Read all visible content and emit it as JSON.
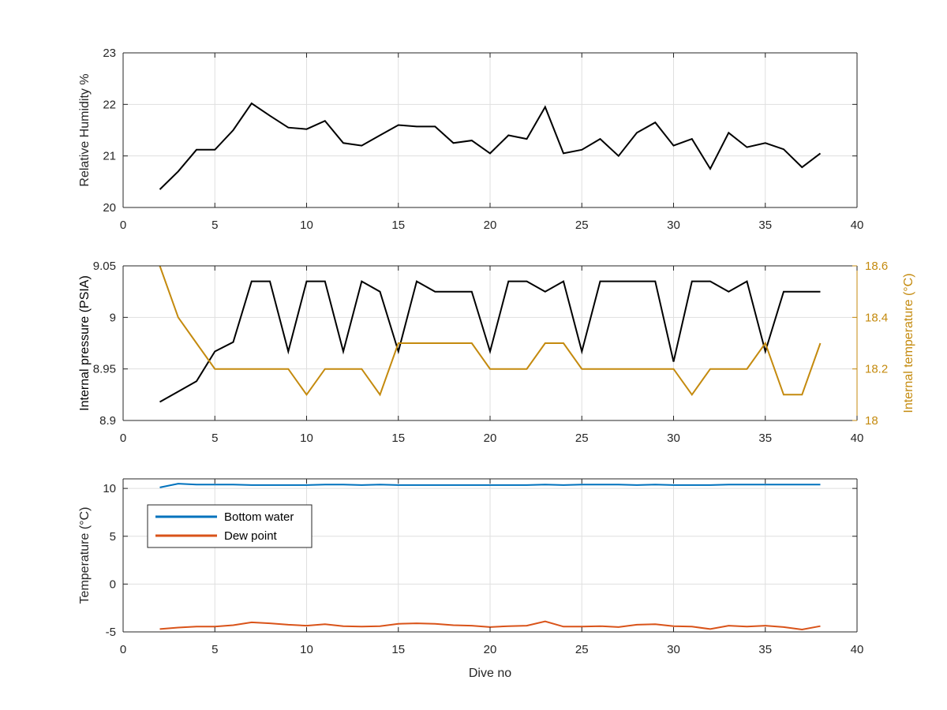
{
  "chart_data": [
    {
      "type": "line",
      "xlabel": "",
      "ylabel": "Relative Humidity %",
      "xlim": [
        0,
        40
      ],
      "ylim": [
        20,
        23
      ],
      "xticks": [
        0,
        5,
        10,
        15,
        20,
        25,
        30,
        35,
        40
      ],
      "yticks": [
        20,
        21,
        22,
        23
      ],
      "grid": true,
      "series": [
        {
          "color": "#000000",
          "x": [
            2,
            3,
            4,
            5,
            6,
            7,
            8,
            9,
            10,
            11,
            12,
            13,
            14,
            15,
            16,
            17,
            18,
            19,
            20,
            21,
            22,
            23,
            24,
            25,
            26,
            27,
            28,
            29,
            30,
            31,
            32,
            33,
            34,
            35,
            36,
            37,
            38
          ],
          "y": [
            20.35,
            20.7,
            21.12,
            21.12,
            21.5,
            22.02,
            21.78,
            21.55,
            21.52,
            21.68,
            21.25,
            21.2,
            21.4,
            21.6,
            21.57,
            21.57,
            21.25,
            21.3,
            21.05,
            21.4,
            21.33,
            21.95,
            21.05,
            21.12,
            21.33,
            21.0,
            21.45,
            21.65,
            21.2,
            21.33,
            20.75,
            21.45,
            21.17,
            21.25,
            21.13,
            20.78,
            21.05
          ]
        }
      ]
    },
    {
      "type": "line",
      "xlabel": "",
      "ylabel": "Internal pressure (PSIA)",
      "ylabel_right": "Internal temperature (°C)",
      "xlim": [
        0,
        40
      ],
      "ylim": [
        8.9,
        9.05
      ],
      "ylim_right": [
        18,
        18.6
      ],
      "xticks": [
        0,
        5,
        10,
        15,
        20,
        25,
        30,
        35,
        40
      ],
      "yticks": [
        "8.9",
        "8.95",
        "9",
        "9.05"
      ],
      "yticks_right": [
        "18",
        "18.2",
        "18.4",
        "18.6"
      ],
      "grid": true,
      "right_axis_color": "#c48a0e",
      "series": [
        {
          "color": "#000000",
          "axis": "left",
          "x": [
            2,
            3,
            4,
            5,
            6,
            7,
            8,
            9,
            10,
            11,
            12,
            13,
            14,
            15,
            16,
            17,
            18,
            19,
            20,
            21,
            22,
            23,
            24,
            25,
            26,
            27,
            28,
            29,
            30,
            31,
            32,
            33,
            34,
            35,
            36,
            37,
            38
          ],
          "y": [
            8.918,
            8.928,
            8.938,
            8.967,
            8.976,
            9.035,
            9.035,
            8.967,
            9.035,
            9.035,
            8.967,
            9.035,
            9.025,
            8.967,
            9.035,
            9.025,
            9.025,
            9.025,
            8.967,
            9.035,
            9.035,
            9.025,
            9.035,
            8.967,
            9.035,
            9.035,
            9.035,
            9.035,
            8.957,
            9.035,
            9.035,
            9.025,
            9.035,
            8.967,
            9.025,
            9.025,
            9.025
          ]
        },
        {
          "color": "#c48a0e",
          "axis": "right",
          "x": [
            2,
            3,
            4,
            5,
            6,
            7,
            8,
            9,
            10,
            11,
            12,
            13,
            14,
            15,
            16,
            17,
            18,
            19,
            20,
            21,
            22,
            23,
            24,
            25,
            26,
            27,
            28,
            29,
            30,
            31,
            32,
            33,
            34,
            35,
            36,
            37,
            38
          ],
          "y": [
            18.6,
            18.4,
            18.3,
            18.2,
            18.2,
            18.2,
            18.2,
            18.2,
            18.1,
            18.2,
            18.2,
            18.2,
            18.1,
            18.3,
            18.3,
            18.3,
            18.3,
            18.3,
            18.2,
            18.2,
            18.2,
            18.3,
            18.3,
            18.2,
            18.2,
            18.2,
            18.2,
            18.2,
            18.2,
            18.1,
            18.2,
            18.2,
            18.2,
            18.3,
            18.1,
            18.1,
            18.3
          ]
        }
      ]
    },
    {
      "type": "line",
      "xlabel": "Dive no",
      "ylabel": "Temperature (°C)",
      "xlim": [
        0,
        40
      ],
      "ylim": [
        -5,
        11
      ],
      "xticks": [
        0,
        5,
        10,
        15,
        20,
        25,
        30,
        35,
        40
      ],
      "yticks": [
        -5,
        0,
        5,
        10
      ],
      "grid": true,
      "legend": "upper-left",
      "series": [
        {
          "name": "Bottom water",
          "color": "#0072bd",
          "x": [
            2,
            3,
            4,
            5,
            6,
            7,
            8,
            9,
            10,
            11,
            12,
            13,
            14,
            15,
            16,
            17,
            18,
            19,
            20,
            21,
            22,
            23,
            24,
            25,
            26,
            27,
            28,
            29,
            30,
            31,
            32,
            33,
            34,
            35,
            36,
            37,
            38
          ],
          "y": [
            10.1,
            10.5,
            10.4,
            10.4,
            10.4,
            10.35,
            10.35,
            10.35,
            10.35,
            10.4,
            10.4,
            10.35,
            10.4,
            10.35,
            10.35,
            10.35,
            10.35,
            10.35,
            10.35,
            10.35,
            10.35,
            10.4,
            10.35,
            10.4,
            10.4,
            10.4,
            10.35,
            10.4,
            10.35,
            10.35,
            10.35,
            10.4,
            10.4,
            10.4,
            10.4,
            10.4,
            10.4
          ]
        },
        {
          "name": "Dew point",
          "color": "#d95319",
          "x": [
            2,
            3,
            4,
            5,
            6,
            7,
            8,
            9,
            10,
            11,
            12,
            13,
            14,
            15,
            16,
            17,
            18,
            19,
            20,
            21,
            22,
            23,
            24,
            25,
            26,
            27,
            28,
            29,
            30,
            31,
            32,
            33,
            34,
            35,
            36,
            37,
            38
          ],
          "y": [
            -4.7,
            -4.55,
            -4.45,
            -4.45,
            -4.3,
            -4.0,
            -4.1,
            -4.25,
            -4.35,
            -4.2,
            -4.4,
            -4.45,
            -4.4,
            -4.15,
            -4.1,
            -4.15,
            -4.3,
            -4.35,
            -4.5,
            -4.4,
            -4.35,
            -3.9,
            -4.45,
            -4.45,
            -4.4,
            -4.5,
            -4.25,
            -4.2,
            -4.4,
            -4.45,
            -4.7,
            -4.35,
            -4.45,
            -4.35,
            -4.5,
            -4.75,
            -4.4
          ]
        }
      ]
    }
  ]
}
